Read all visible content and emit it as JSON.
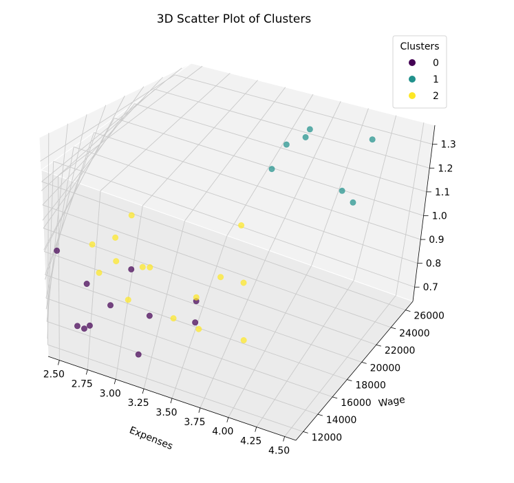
{
  "chart_data": {
    "type": "scatter",
    "projection": "3d",
    "title": "3D Scatter Plot of Clusters",
    "xlabel": "Expenses",
    "ylabel": "Wage",
    "zlabel": "",
    "xlim": [
      2.4,
      4.6
    ],
    "ylim": [
      11000,
      27000
    ],
    "zlim": [
      0.64,
      1.38
    ],
    "xticks": [
      "2.50",
      "2.75",
      "3.00",
      "3.25",
      "3.50",
      "3.75",
      "4.00",
      "4.25",
      "4.50"
    ],
    "yticks": [
      "12000",
      "14000",
      "16000",
      "18000",
      "20000",
      "22000",
      "24000",
      "26000"
    ],
    "zticks": [
      "0.7",
      "0.8",
      "0.9",
      "1.0",
      "1.1",
      "1.2",
      "1.3"
    ],
    "grid": true,
    "legend": {
      "title": "Clusters",
      "placement": "top-right"
    },
    "colors": {
      "0": "#440154",
      "1": "#21918c",
      "2": "#fde725"
    },
    "series": [
      {
        "name": "0",
        "points": [
          {
            "x": 2.45,
            "y": 12800,
            "z": 0.95
          },
          {
            "x": 2.7,
            "y": 13500,
            "z": 0.84
          },
          {
            "x": 3.05,
            "y": 14000,
            "z": 0.92
          },
          {
            "x": 2.65,
            "y": 12500,
            "z": 0.72
          },
          {
            "x": 2.75,
            "y": 12900,
            "z": 0.72
          },
          {
            "x": 2.9,
            "y": 13800,
            "z": 0.78
          },
          {
            "x": 3.2,
            "y": 14800,
            "z": 0.75
          },
          {
            "x": 2.7,
            "y": 14000,
            "z": 0.66
          },
          {
            "x": 3.15,
            "y": 13600,
            "z": 0.65
          },
          {
            "x": 3.55,
            "y": 15300,
            "z": 0.76
          },
          {
            "x": 3.5,
            "y": 16800,
            "z": 0.78
          }
        ]
      },
      {
        "name": "1",
        "points": [
          {
            "x": 3.55,
            "y": 25600,
            "z": 1.05
          },
          {
            "x": 3.6,
            "y": 24800,
            "z": 1.2
          },
          {
            "x": 3.7,
            "y": 25200,
            "z": 1.24
          },
          {
            "x": 3.65,
            "y": 26400,
            "z": 1.24
          },
          {
            "x": 4.1,
            "y": 25000,
            "z": 1.07
          },
          {
            "x": 4.2,
            "y": 24900,
            "z": 1.04
          },
          {
            "x": 4.15,
            "y": 26400,
            "z": 1.27
          }
        ]
      },
      {
        "name": "2",
        "points": [
          {
            "x": 2.8,
            "y": 17800,
            "z": 0.88
          },
          {
            "x": 2.65,
            "y": 17200,
            "z": 0.85
          },
          {
            "x": 2.85,
            "y": 17600,
            "z": 0.8
          },
          {
            "x": 2.75,
            "y": 16500,
            "z": 0.78
          },
          {
            "x": 3.05,
            "y": 17600,
            "z": 0.81
          },
          {
            "x": 3.1,
            "y": 17800,
            "z": 0.81
          },
          {
            "x": 3.0,
            "y": 16400,
            "z": 0.72
          },
          {
            "x": 3.35,
            "y": 16600,
            "z": 0.7
          },
          {
            "x": 3.55,
            "y": 16400,
            "z": 0.7
          },
          {
            "x": 3.6,
            "y": 18800,
            "z": 0.82
          },
          {
            "x": 3.45,
            "y": 19200,
            "z": 0.7
          },
          {
            "x": 3.75,
            "y": 19500,
            "z": 0.8
          },
          {
            "x": 3.85,
            "y": 17800,
            "z": 0.66
          },
          {
            "x": 3.55,
            "y": 23500,
            "z": 0.86
          },
          {
            "x": 2.85,
            "y": 19500,
            "z": 0.92
          }
        ]
      }
    ]
  }
}
